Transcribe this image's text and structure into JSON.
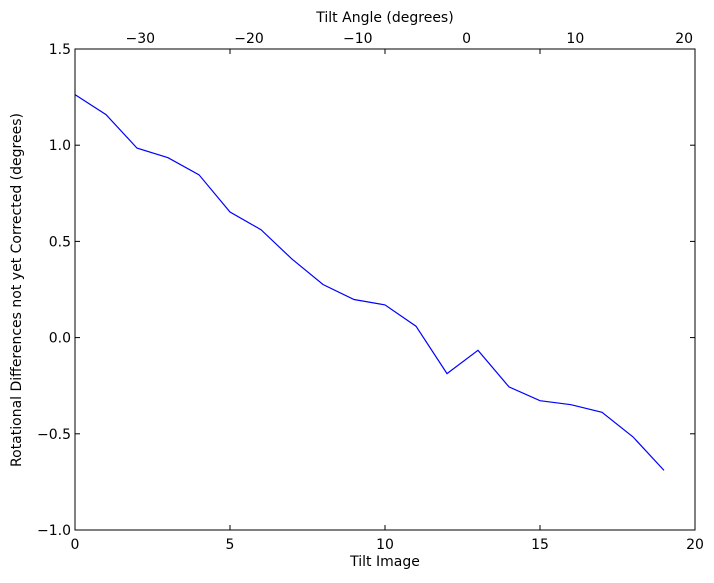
{
  "chart_data": {
    "type": "line",
    "title": "",
    "xlabel": "Tilt Image",
    "ylabel": "Rotational Differences not yet Corrected (degrees)",
    "x2label": "Tilt Angle (degrees)",
    "xlim": [
      0,
      20
    ],
    "ylim": [
      -1.0,
      1.5
    ],
    "x2lim": [
      -36,
      21
    ],
    "xticks": [
      0,
      5,
      10,
      15,
      20
    ],
    "xtick_labels": [
      "0",
      "5",
      "10",
      "15",
      "20"
    ],
    "yticks": [
      -1.0,
      -0.5,
      0.0,
      0.5,
      1.0,
      1.5
    ],
    "ytick_labels": [
      "−1.0",
      "−0.5",
      "0.0",
      "0.5",
      "1.0",
      "1.5"
    ],
    "x2ticks": [
      -30,
      -20,
      -10,
      0,
      10,
      20
    ],
    "x2tick_labels": [
      "−30",
      "−20",
      "−10",
      "0",
      "10",
      "20"
    ],
    "grid": false,
    "series": [
      {
        "color": "#0000ff",
        "x": [
          0,
          1,
          2,
          3,
          4,
          5,
          6,
          7,
          8,
          9,
          10,
          11,
          12,
          13,
          14,
          15,
          16,
          17,
          18,
          19
        ],
        "y": [
          1.263,
          1.159,
          0.985,
          0.935,
          0.846,
          0.653,
          0.561,
          0.408,
          0.276,
          0.198,
          0.17,
          0.059,
          -0.187,
          -0.066,
          -0.256,
          -0.328,
          -0.349,
          -0.388,
          -0.516,
          -0.69
        ]
      }
    ]
  }
}
